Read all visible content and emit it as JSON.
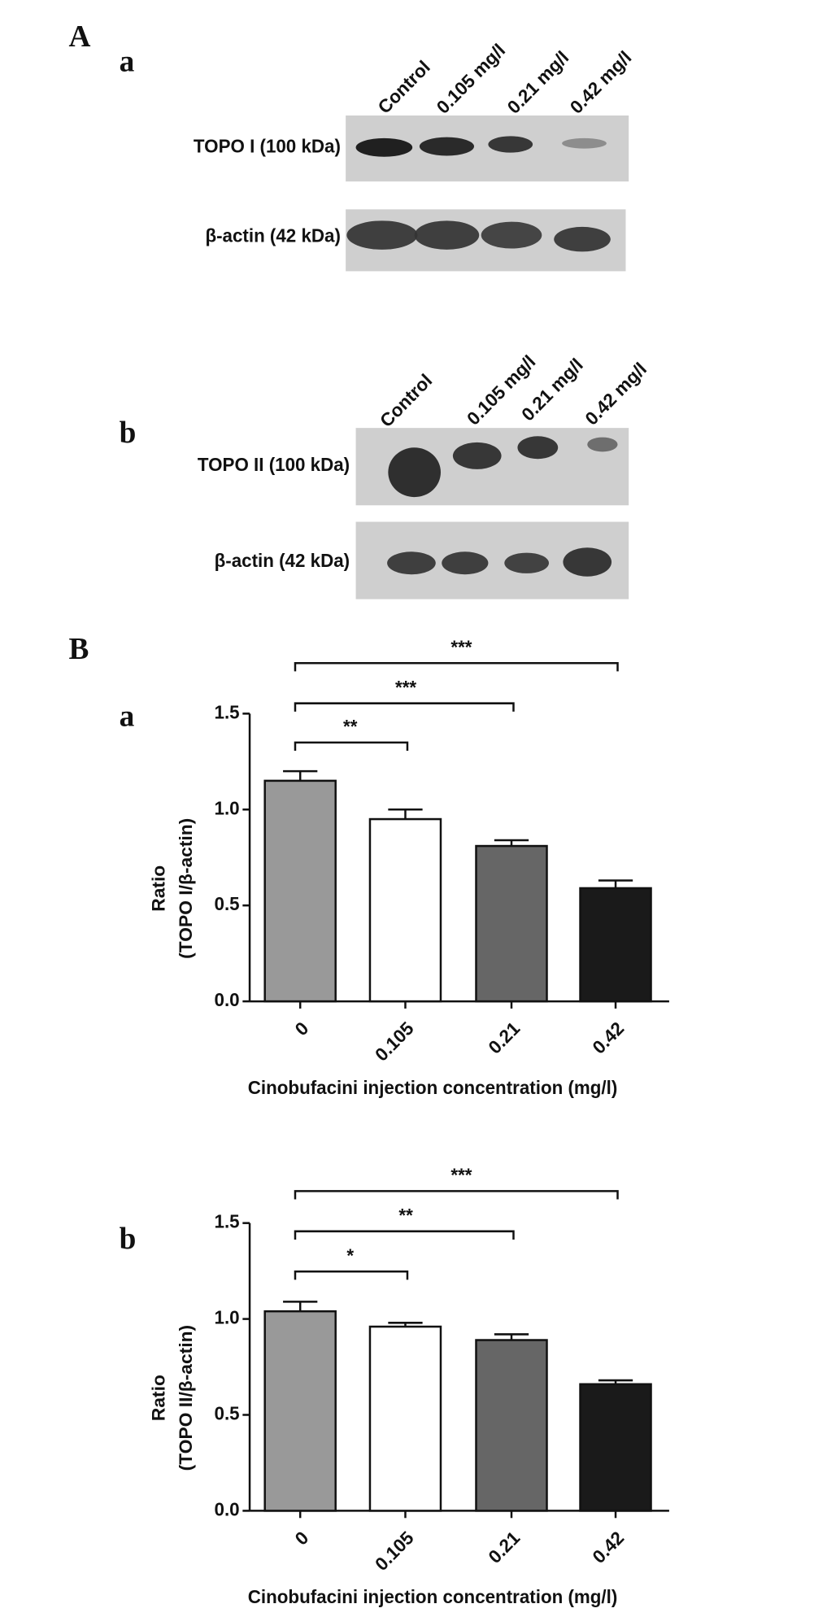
{
  "panel_labels": [
    "A",
    "a",
    "b",
    "B",
    "a",
    "b"
  ],
  "blots": [
    {
      "lanes": [
        "Control",
        "0.105 mg/l",
        "0.21 mg/l",
        "0.42 mg/l"
      ],
      "rows": [
        "TOPO I (100 kDa)",
        "β-actin (42 kDa)"
      ]
    },
    {
      "lanes": [
        "Control",
        "0.105 mg/l",
        "0.21 mg/l",
        "0.42 mg/l"
      ],
      "rows": [
        "TOPO II (100 kDa)",
        "β-actin (42 kDa)"
      ]
    }
  ],
  "chart_data": [
    {
      "type": "bar",
      "y_label": [
        "Ratio",
        "(TOPO I/β-actin)"
      ],
      "x_label": "Cinobufacini injection concentration (mg/l)",
      "categories": [
        "0",
        "0.105",
        "0.21",
        "0.42"
      ],
      "values": [
        1.15,
        0.95,
        0.81,
        0.59
      ],
      "errors": [
        0.05,
        0.05,
        0.03,
        0.04
      ],
      "colors": [
        "#999999",
        "#ffffff",
        "#666666",
        "#1a1a1a"
      ],
      "ylim": [
        0,
        1.5
      ],
      "yticks": [
        {
          "value": 0,
          "label": "0.0"
        },
        {
          "value": 0.5,
          "label": "0.5"
        },
        {
          "value": 1,
          "label": "1.0"
        },
        {
          "value": 1.5,
          "label": "1.5"
        }
      ],
      "annotations": [
        {
          "text": "**",
          "from": 0,
          "to": 1
        },
        {
          "text": "***",
          "from": 0,
          "to": 2
        },
        {
          "text": "***",
          "from": 0,
          "to": 3
        }
      ]
    },
    {
      "type": "bar",
      "y_label": [
        "Ratio",
        "(TOPO II/β-actin)"
      ],
      "x_label": "Cinobufacini injection concentration (mg/l)",
      "categories": [
        "0",
        "0.105",
        "0.21",
        "0.42"
      ],
      "values": [
        1.04,
        0.96,
        0.89,
        0.66
      ],
      "errors": [
        0.05,
        0.02,
        0.03,
        0.02
      ],
      "colors": [
        "#999999",
        "#ffffff",
        "#666666",
        "#1a1a1a"
      ],
      "ylim": [
        0,
        1.5
      ],
      "yticks": [
        {
          "value": 0,
          "label": "0.0"
        },
        {
          "value": 0.5,
          "label": "0.5"
        },
        {
          "value": 1,
          "label": "1.0"
        },
        {
          "value": 1.5,
          "label": "1.5"
        }
      ],
      "annotations": [
        {
          "text": "*",
          "from": 0,
          "to": 1
        },
        {
          "text": "**",
          "from": 0,
          "to": 2
        },
        {
          "text": "***",
          "from": 0,
          "to": 3
        }
      ]
    }
  ]
}
